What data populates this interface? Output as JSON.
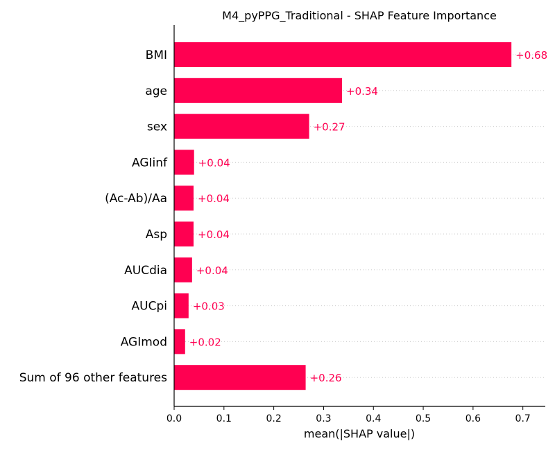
{
  "chart_data": {
    "type": "bar",
    "orientation": "horizontal",
    "title": "M4_pyPPG_Traditional - SHAP Feature Importance",
    "xlabel": "mean(|SHAP value|)",
    "ylabel": "",
    "categories": [
      "BMI",
      "age",
      "sex",
      "AGIinf",
      "(Ac-Ab)/Aa",
      "Asp",
      "AUCdia",
      "AUCpi",
      "AGImod",
      "Sum of 96 other features"
    ],
    "values": [
      0.677,
      0.337,
      0.271,
      0.04,
      0.039,
      0.039,
      0.036,
      0.029,
      0.022,
      0.264
    ],
    "value_labels": [
      "+0.68",
      "+0.34",
      "+0.27",
      "+0.04",
      "+0.04",
      "+0.04",
      "+0.04",
      "+0.03",
      "+0.02",
      "+0.26"
    ],
    "xlim": [
      0,
      0.745
    ],
    "xticks": [
      "0.0",
      "0.1",
      "0.2",
      "0.3",
      "0.4",
      "0.5",
      "0.6",
      "0.7"
    ],
    "xtick_values": [
      0,
      0.1,
      0.2,
      0.3,
      0.4,
      0.5,
      0.6,
      0.7
    ],
    "grid": "dotted horizontal guide lines per bar",
    "legend": "none",
    "colors": {
      "bar": "#ff0051",
      "value_label": "#ff0051",
      "axis": "#000000",
      "grid": "#cccccc"
    }
  }
}
